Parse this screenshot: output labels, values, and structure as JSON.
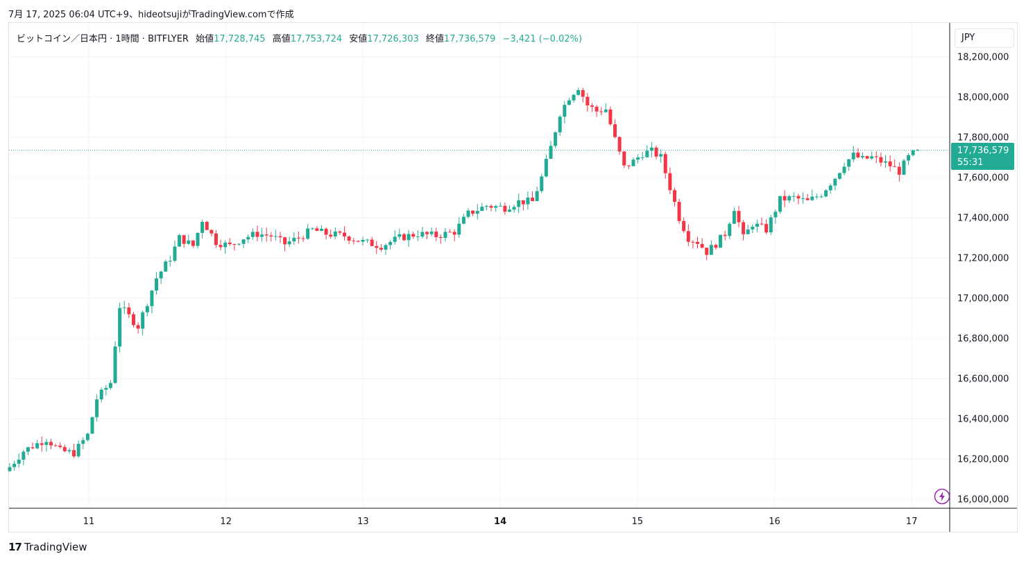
{
  "header_caption": "7月 17, 2025 06:04 UTC+9、hideotsujiがTradingView.comで作成",
  "legend": {
    "symbol": "ビットコイン／日本円 · 1時間 · BITFLYER",
    "open_label": "始値",
    "open": "17,728,745",
    "high_label": "高値",
    "high": "17,753,724",
    "low_label": "安値",
    "low": "17,726,303",
    "close_label": "終値",
    "close": "17,736,579",
    "change": "−3,421 (−0.02%)"
  },
  "currency": "JPY",
  "price_tag": {
    "price": "17,736,579",
    "countdown": "55:31"
  },
  "footer": {
    "logo": "17",
    "brand": "TradingView"
  },
  "bolt_icon": "lightning-icon",
  "colors": {
    "up": "#22ab94",
    "down": "#f23645",
    "grid": "#f0f3fa",
    "axis": "#131722"
  },
  "chart_data": {
    "type": "candlestick",
    "interval": "1時間",
    "y_axis": {
      "ticks": [
        16000000,
        16200000,
        16400000,
        16600000,
        16800000,
        17000000,
        17200000,
        17400000,
        17600000,
        17800000,
        18000000,
        18200000
      ],
      "tick_labels": [
        "16,000,000",
        "16,200,000",
        "16,400,000",
        "16,600,000",
        "16,800,000",
        "17,000,000",
        "17,200,000",
        "17,400,000",
        "17,600,000",
        "17,800,000",
        "18,000,000",
        "18,200,000"
      ],
      "ylim": [
        15950000,
        18250000
      ]
    },
    "x_axis": {
      "tick_labels": [
        "11",
        "12",
        "13",
        "14",
        "15",
        "16",
        "17"
      ],
      "bold_labels": [
        "14"
      ]
    },
    "last_price": 17736579,
    "waypoints": [
      [
        0,
        16160000
      ],
      [
        3,
        16240000
      ],
      [
        8,
        16300000
      ],
      [
        11,
        16240000
      ],
      [
        14,
        16230000
      ],
      [
        17,
        16320000
      ],
      [
        19,
        16500000
      ],
      [
        22,
        16580000
      ],
      [
        24,
        16960000
      ],
      [
        28,
        16860000
      ],
      [
        32,
        17100000
      ],
      [
        35,
        17200000
      ],
      [
        37,
        17300000
      ],
      [
        40,
        17260000
      ],
      [
        42,
        17390000
      ],
      [
        45,
        17280000
      ],
      [
        48,
        17260000
      ],
      [
        51,
        17300000
      ],
      [
        54,
        17320000
      ],
      [
        57,
        17310000
      ],
      [
        60,
        17270000
      ],
      [
        63,
        17300000
      ],
      [
        66,
        17340000
      ],
      [
        69,
        17320000
      ],
      [
        73,
        17310000
      ],
      [
        77,
        17280000
      ],
      [
        81,
        17260000
      ],
      [
        85,
        17300000
      ],
      [
        89,
        17320000
      ],
      [
        93,
        17310000
      ],
      [
        97,
        17330000
      ],
      [
        100,
        17420000
      ],
      [
        104,
        17460000
      ],
      [
        108,
        17450000
      ],
      [
        111,
        17480000
      ],
      [
        114,
        17480000
      ],
      [
        116,
        17600000
      ],
      [
        118,
        17750000
      ],
      [
        120,
        17920000
      ],
      [
        122,
        18000000
      ],
      [
        124,
        18050000
      ],
      [
        126,
        17960000
      ],
      [
        128,
        17930000
      ],
      [
        130,
        17940000
      ],
      [
        132,
        17790000
      ],
      [
        134,
        17650000
      ],
      [
        136,
        17680000
      ],
      [
        138,
        17720000
      ],
      [
        140,
        17730000
      ],
      [
        142,
        17700000
      ],
      [
        144,
        17550000
      ],
      [
        146,
        17400000
      ],
      [
        148,
        17300000
      ],
      [
        150,
        17280000
      ],
      [
        152,
        17230000
      ],
      [
        154,
        17270000
      ],
      [
        156,
        17320000
      ],
      [
        158,
        17450000
      ],
      [
        160,
        17300000
      ],
      [
        162,
        17370000
      ],
      [
        165,
        17340000
      ],
      [
        168,
        17490000
      ],
      [
        171,
        17500000
      ],
      [
        174,
        17480000
      ],
      [
        177,
        17520000
      ],
      [
        180,
        17600000
      ],
      [
        182,
        17670000
      ],
      [
        184,
        17710000
      ],
      [
        186,
        17690000
      ],
      [
        188,
        17700000
      ],
      [
        190,
        17680000
      ],
      [
        192,
        17660000
      ],
      [
        194,
        17630000
      ],
      [
        196,
        17700000
      ],
      [
        198,
        17736579
      ]
    ]
  }
}
